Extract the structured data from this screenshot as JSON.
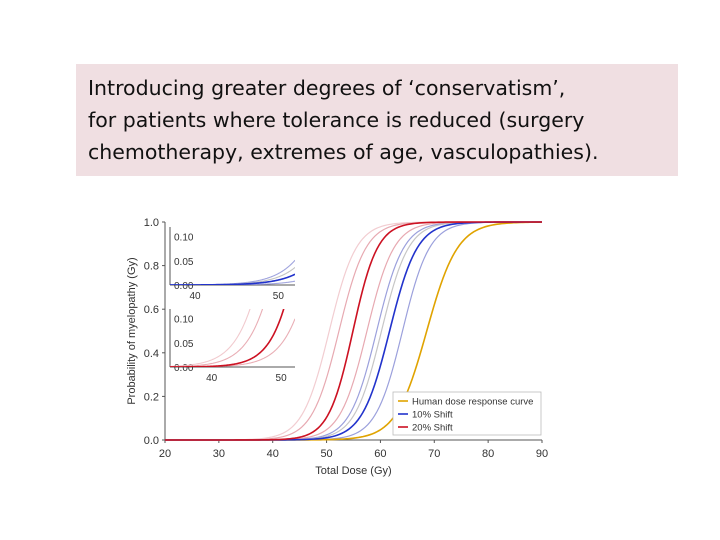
{
  "callout": {
    "lines": [
      "Introducing greater degrees of ‘conservatism’,",
      "for patients where tolerance is reduced (surgery",
      "chemotherapy, extremes of age, vasculopathies)."
    ]
  },
  "chart_data": [
    {
      "type": "line",
      "xlabel": "Total Dose (Gy)",
      "ylabel": "Probability of myelopathy (Gy)",
      "xlim": [
        20,
        90
      ],
      "ylim": [
        0,
        1
      ],
      "xticks": [
        "20",
        "30",
        "40",
        "50",
        "60",
        "70",
        "80",
        "90"
      ],
      "yticks": [
        "0.0",
        "0.2",
        "0.4",
        "0.6",
        "0.8",
        "1.0"
      ],
      "grid": false,
      "legend_position": "bottom-right",
      "series": [
        {
          "name": "Human dose response curve",
          "color": "#e0a300",
          "d50": 68.6,
          "slope": 0.35,
          "band": false
        },
        {
          "name": "10% Shift",
          "color": "#2233cc",
          "d50": 61.7,
          "slope": 0.39,
          "band": true
        },
        {
          "name": "20% Shift",
          "color": "#cc1122",
          "d50": 54.9,
          "slope": 0.44,
          "band": true
        }
      ],
      "unlabeled_curves": [
        {
          "color": "#8a8fd6",
          "d50": 59.3
        },
        {
          "color": "#8a8fd6",
          "d50": 64.1
        },
        {
          "color": "#bcbcbc",
          "d50": 60.2
        },
        {
          "color": "#e39aa3",
          "d50": 52.3
        },
        {
          "color": "#e39aa3",
          "d50": 57.5
        },
        {
          "color": "#f0c4c9",
          "d50": 50.5
        }
      ]
    },
    {
      "type": "line",
      "xlim": [
        37,
        52
      ],
      "ylim": [
        0,
        0.12
      ],
      "xticks": [
        "40",
        "50"
      ],
      "yticks": [
        "0.00",
        "0.05",
        "0.10"
      ],
      "series_ref": "10% Shift"
    },
    {
      "type": "line",
      "xlim": [
        34,
        52
      ],
      "ylim": [
        0,
        0.12
      ],
      "xticks": [
        "40",
        "50"
      ],
      "yticks": [
        "0.00",
        "0.05",
        "0.10"
      ],
      "series_ref": "20% Shift"
    }
  ]
}
